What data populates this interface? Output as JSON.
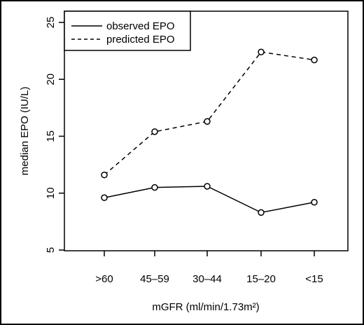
{
  "chart_data": {
    "type": "line",
    "xlabel": "mGFR (ml/min/1.73m²)",
    "ylabel": "median EPO (IU/L)",
    "categories": [
      ">60",
      "45–59",
      "30–44",
      "15–20",
      "<15"
    ],
    "ylim": [
      5,
      25
    ],
    "yticks": [
      5,
      10,
      15,
      20,
      25
    ],
    "grid": false,
    "legend_position": "top-left",
    "series": [
      {
        "name": "observed EPO",
        "line_style": "solid",
        "values": [
          9.6,
          10.5,
          10.6,
          8.3,
          9.2
        ]
      },
      {
        "name": "predicted EPO",
        "line_style": "dashed",
        "values": [
          11.6,
          15.4,
          16.3,
          22.4,
          21.7
        ]
      }
    ]
  }
}
